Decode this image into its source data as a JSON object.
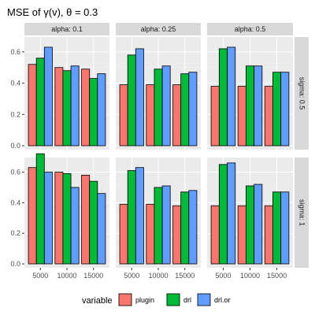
{
  "chart_data": {
    "type": "bar",
    "title": "MSE of γ(v), θ = 0.3",
    "legend": {
      "title": "variable",
      "position": "bottom",
      "entries": [
        {
          "name": "plugin",
          "color": "#F8766D"
        },
        {
          "name": "drl",
          "color": "#00BA38"
        },
        {
          "name": "drl.or",
          "color": "#619CFF"
        }
      ]
    },
    "categories": [
      "5000",
      "10000",
      "15000"
    ],
    "y_ticks": [
      "0.0",
      "0.2",
      "0.4",
      "0.6"
    ],
    "ylim": [
      0,
      0.68
    ],
    "grid": true,
    "col_strips": [
      "alpha: 0.1",
      "alpha: 0.25",
      "alpha: 0.5"
    ],
    "row_strips": [
      "sigma: 0.5",
      "sigma: 1"
    ],
    "panels": [
      {
        "row": 0,
        "col": 0,
        "series": [
          {
            "name": "plugin",
            "values": [
              0.52,
              0.5,
              0.49
            ]
          },
          {
            "name": "drl",
            "values": [
              0.56,
              0.48,
              0.43
            ]
          },
          {
            "name": "drl.or",
            "values": [
              0.63,
              0.51,
              0.46
            ]
          }
        ]
      },
      {
        "row": 0,
        "col": 1,
        "series": [
          {
            "name": "plugin",
            "values": [
              0.39,
              0.39,
              0.39
            ]
          },
          {
            "name": "drl",
            "values": [
              0.58,
              0.49,
              0.46
            ]
          },
          {
            "name": "drl.or",
            "values": [
              0.62,
              0.51,
              0.47
            ]
          }
        ]
      },
      {
        "row": 0,
        "col": 2,
        "series": [
          {
            "name": "plugin",
            "values": [
              0.38,
              0.38,
              0.38
            ]
          },
          {
            "name": "drl",
            "values": [
              0.62,
              0.51,
              0.47
            ]
          },
          {
            "name": "drl.or",
            "values": [
              0.63,
              0.51,
              0.47
            ]
          }
        ]
      },
      {
        "row": 1,
        "col": 0,
        "series": [
          {
            "name": "plugin",
            "values": [
              0.63,
              0.6,
              0.58
            ]
          },
          {
            "name": "drl",
            "values": [
              0.72,
              0.59,
              0.54
            ]
          },
          {
            "name": "drl.or",
            "values": [
              0.6,
              0.5,
              0.46
            ]
          }
        ]
      },
      {
        "row": 1,
        "col": 1,
        "series": [
          {
            "name": "plugin",
            "values": [
              0.39,
              0.39,
              0.38
            ]
          },
          {
            "name": "drl",
            "values": [
              0.61,
              0.5,
              0.47
            ]
          },
          {
            "name": "drl.or",
            "values": [
              0.63,
              0.51,
              0.48
            ]
          }
        ]
      },
      {
        "row": 1,
        "col": 2,
        "series": [
          {
            "name": "plugin",
            "values": [
              0.38,
              0.38,
              0.38
            ]
          },
          {
            "name": "drl",
            "values": [
              0.65,
              0.51,
              0.47
            ]
          },
          {
            "name": "drl.or",
            "values": [
              0.66,
              0.52,
              0.47
            ]
          }
        ]
      }
    ]
  }
}
